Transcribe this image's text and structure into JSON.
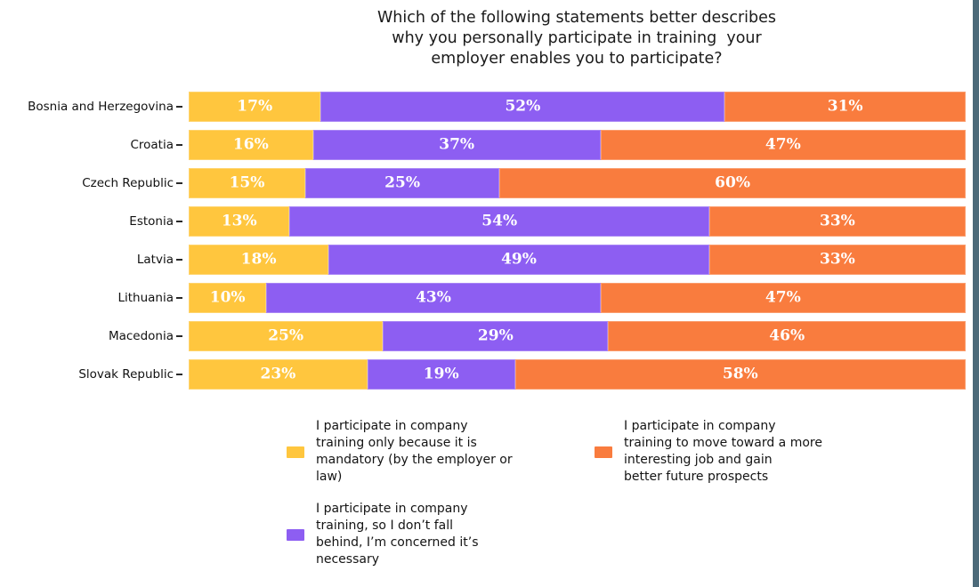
{
  "title": {
    "lines": [
      "Which of the following statements better describes",
      "why you personally participate in training  your",
      "employer enables you to participate?"
    ]
  },
  "colors": {
    "mandatory_yellow": "#FFC63E",
    "fall_behind_purple": "#8D5EF2",
    "prospects_orange": "#F97C3E",
    "value_label_text": "#FFFFFF",
    "frame_border": "#4D6B7A"
  },
  "legend": {
    "items": [
      {
        "series": "mandatory",
        "color": "#FFC63E",
        "column": 1,
        "label": "I participate in company training only because it is mandatory (by the employer or law)",
        "lines": [
          "I participate in company",
          "training only because it is",
          "mandatory (by the employer or",
          "law)"
        ]
      },
      {
        "series": "fall-behind",
        "color": "#8D5EF2",
        "column": 1,
        "label": "I participate in company training, so I don’t fall behind, I’m concerned it’s necessary",
        "lines": [
          "I participate in company",
          "training, so I don’t fall",
          "behind, I’m concerned it’s",
          "necessary"
        ]
      },
      {
        "series": "prospects",
        "color": "#F97C3E",
        "column": 2,
        "label": "I participate in company training to move toward a more interesting job and gain better future prospects",
        "lines": [
          "I participate in company",
          "training to move toward a more",
          "interesting job and gain",
          "better future prospects"
        ]
      }
    ]
  },
  "chart_data": {
    "type": "bar",
    "orientation": "horizontal",
    "stacked": true,
    "unit": "%",
    "xlim": [
      0,
      100
    ],
    "grid": false,
    "value_labels": "inside-center-white",
    "legend_position": "bottom",
    "title": "Which of the following statements better describes why you personally participate in training  your employer enables you to participate?",
    "categories": [
      "Bosnia and Herzegovina",
      "Croatia",
      "Czech Republic",
      "Estonia",
      "Latvia",
      "Lithuania",
      "Macedonia",
      "Slovak Republic"
    ],
    "series": [
      {
        "name": "I participate in company training only because it is mandatory (by the employer or law)",
        "key": "mandatory",
        "color": "#FFC63E",
        "values": [
          17,
          16,
          15,
          13,
          18,
          10,
          25,
          23
        ]
      },
      {
        "name": "I participate in company training, so I don’t fall behind, I’m concerned it’s necessary",
        "key": "fall-behind",
        "color": "#8D5EF2",
        "values": [
          52,
          37,
          25,
          54,
          49,
          43,
          29,
          19
        ]
      },
      {
        "name": "I participate in company training to move toward a more interesting job and gain better future prospects",
        "key": "prospects",
        "color": "#F97C3E",
        "values": [
          31,
          47,
          60,
          33,
          33,
          47,
          46,
          58
        ]
      }
    ]
  }
}
